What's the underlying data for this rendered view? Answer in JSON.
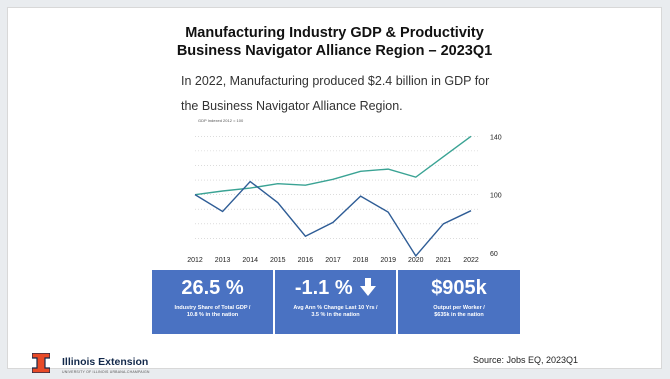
{
  "header": {
    "title_line1": "Manufacturing Industry GDP & Productivity",
    "title_line2": "Business Navigator Alliance Region – 2023Q1",
    "subtitle_line1": "In 2022, Manufacturing produced $2.4 billion in GDP for",
    "subtitle_line2": "the Business Navigator Alliance Region."
  },
  "chart_data": {
    "type": "line",
    "ylabel": "GDP Indexed 2012 = 100",
    "x": [
      "2012",
      "2013",
      "2014",
      "2015",
      "2016",
      "2017",
      "2018",
      "2019",
      "2020",
      "2021",
      "2022"
    ],
    "y_ticks": [
      "140",
      "100",
      "60"
    ],
    "ylim": [
      60,
      145
    ],
    "grid": true,
    "series": [
      {
        "color": "#3aa394",
        "values": [
          100,
          102.5,
          104.5,
          107.5,
          106.5,
          110.5,
          116,
          117.5,
          112,
          126,
          140
        ]
      },
      {
        "color": "#2f5d96",
        "values": [
          100,
          88.5,
          109,
          94.5,
          71.5,
          81,
          99,
          88,
          58,
          80,
          89
        ]
      }
    ]
  },
  "stats": [
    {
      "value": "26.5 %",
      "label_line1": "Industry Share of Total GDP /",
      "label_line2": "10.8 % in the nation"
    },
    {
      "value": "-1.1 %",
      "arrow": "down-arrow-icon",
      "label_line1": "Avg Ann % Change Last 10 Yrs /",
      "label_line2": "3.5 % in the nation"
    },
    {
      "value": "$905k",
      "label_line1": "Output per Worker /",
      "label_line2": "$635k in the nation"
    }
  ],
  "footer": {
    "brand": "Illinois Extension",
    "brand_sub": "UNIVERSITY OF ILLINOIS URBANA-CHAMPAIGN",
    "source": "Source: Jobs EQ, 2023Q1",
    "colors": {
      "orange": "#e84a27",
      "navy": "#13294b"
    }
  }
}
